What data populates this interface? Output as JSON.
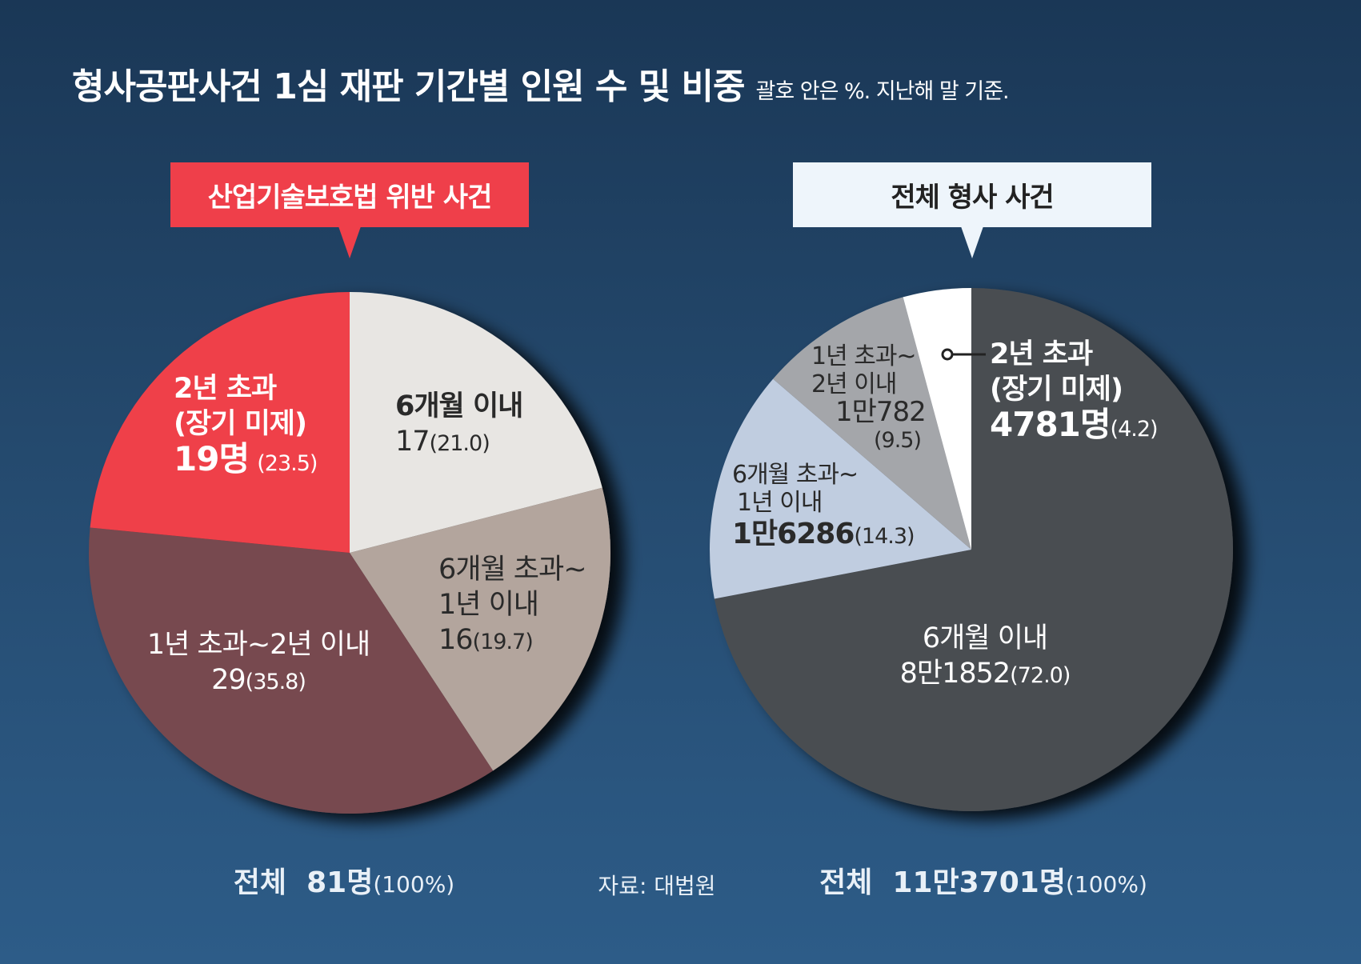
{
  "title": "형사공판사건 1심 재판 기간별 인원 수 및 비중",
  "subtitle": "괄호 안은 %. 지난해 말 기준.",
  "source": "자료: 대법원",
  "chart_data": [
    {
      "type": "pie",
      "title": "산업기술보호법 위반 사건",
      "start": "top",
      "direction": "clockwise",
      "slices": [
        {
          "label": "6개월 이내",
          "value": 17,
          "percent": 21.0,
          "color": "#e8e6e3",
          "value_text": "17",
          "pct_text": "(21.0)"
        },
        {
          "label": "6개월 초과~ 1년 이내",
          "value": 16,
          "percent": 19.7,
          "color": "#b3a59d",
          "value_text": "16",
          "pct_text": "(19.7)"
        },
        {
          "label": "1년 초과~2년 이내",
          "value": 29,
          "percent": 35.8,
          "color": "#77494f",
          "value_text": "29",
          "pct_text": "(35.8)"
        },
        {
          "label": "2년 초과 (장기 미제)",
          "value": 19,
          "percent": 23.5,
          "color": "#ef3f4a",
          "value_text": "19명",
          "pct_text": "(23.5)"
        }
      ],
      "total_label": "전체",
      "total_value": "81명",
      "total_pct": "(100%)"
    },
    {
      "type": "pie",
      "title": "전체 형사 사건",
      "start": "top",
      "direction": "clockwise",
      "slices": [
        {
          "label": "6개월 이내",
          "value": 81852,
          "percent": 72.0,
          "color": "#4a4d51",
          "value_text": "8만1852",
          "pct_text": "(72.0)"
        },
        {
          "label": "6개월 초과~ 1년 이내",
          "value": 16286,
          "percent": 14.3,
          "color": "#c0cde0",
          "value_text": "1만6286",
          "pct_text": "(14.3)"
        },
        {
          "label": "1년 초과~ 2년 이내",
          "value": 10782,
          "percent": 9.5,
          "color": "#a4a6aa",
          "value_text": "1만782",
          "pct_text": "(9.5)"
        },
        {
          "label": "2년 초과 (장기 미제)",
          "value": 4781,
          "percent": 4.2,
          "color": "#ffffff",
          "value_text": "4781명",
          "pct_text": "(4.2)"
        }
      ],
      "total_label": "전체",
      "total_value": "11만3701명",
      "total_pct": "(100%)"
    }
  ],
  "labels": {
    "l_over2_a": "2년 초과",
    "l_over2_b": "(장기 미제)",
    "l_6m": "6개월 이내",
    "l_6m1y_a": "6개월 초과~",
    "l_6m1y_b": "1년 이내",
    "l_1y2y": "1년 초과~2년 이내",
    "r_1y2y_a": "1년 초과~",
    "r_1y2y_b": "2년 이내",
    "r_over2_a": "2년 초과",
    "r_over2_b": "(장기 미제)",
    "r_6m1y_a": "6개월 초과~",
    "r_6m1y_b": "1년 이내",
    "r_6m": "6개월 이내"
  }
}
